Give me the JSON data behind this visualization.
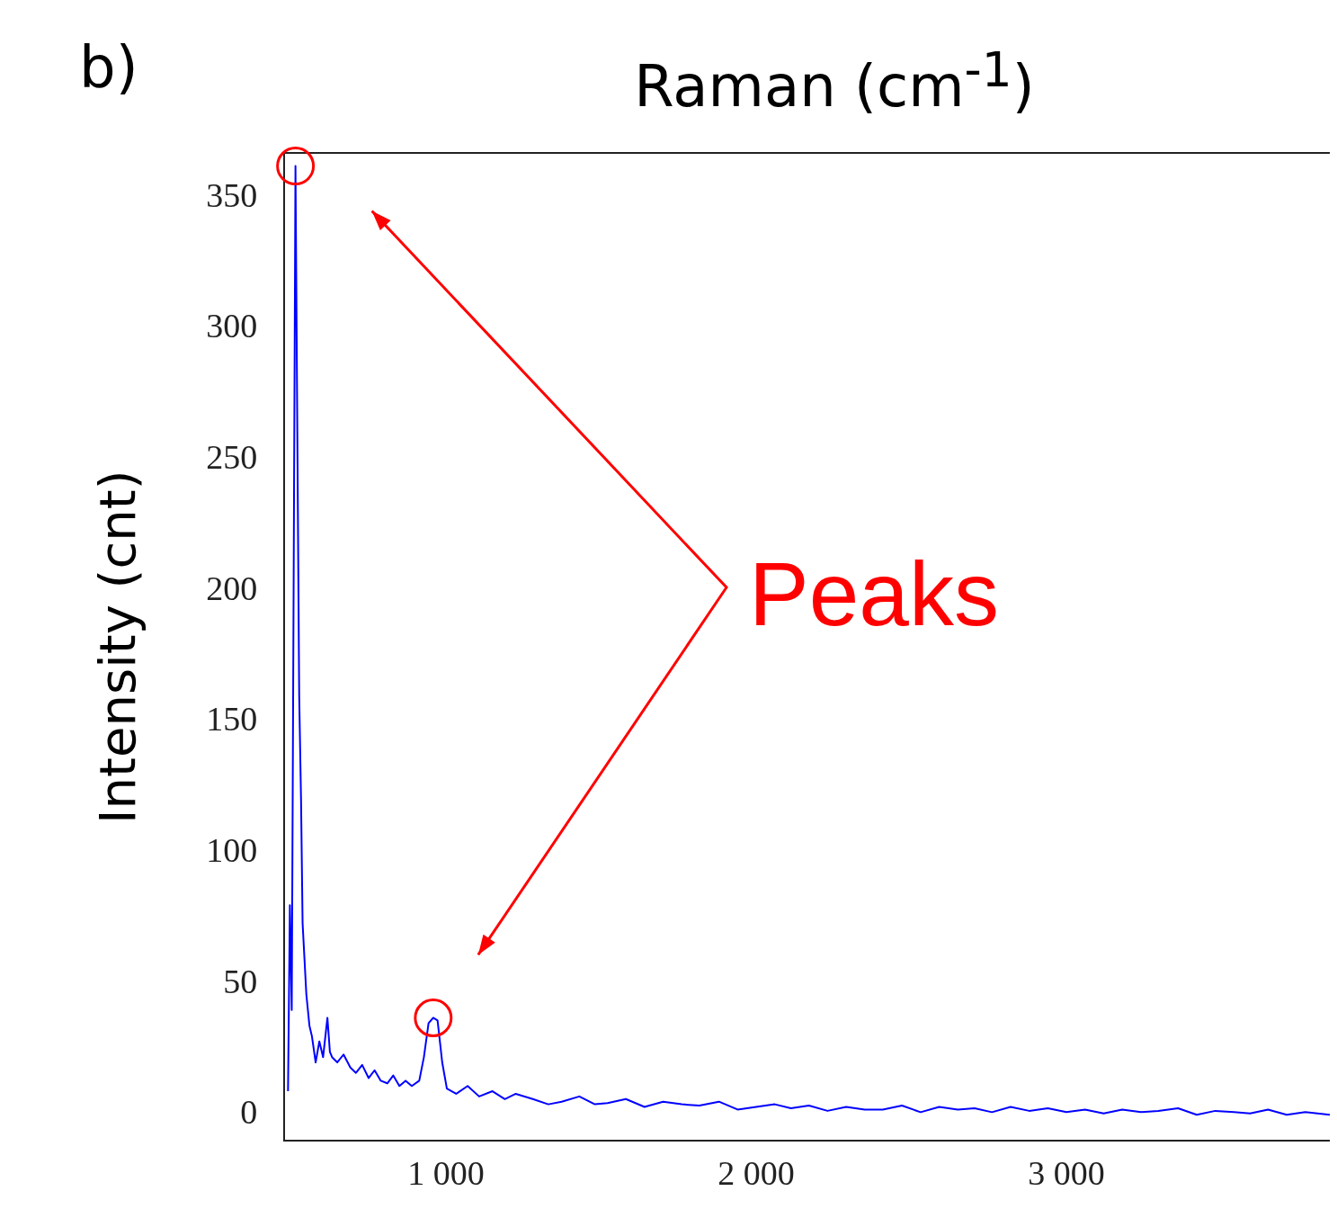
{
  "chart_data": {
    "type": "line",
    "xlabel": "Raman (cm$^{-1}$)",
    "ylabel": "Intensity (cnt)",
    "annotations": [
      "b)",
      "Peaks"
    ],
    "x": [
      491,
      497,
      503,
      509,
      515,
      521,
      527,
      533,
      538,
      550,
      560,
      568,
      580,
      592,
      604,
      618,
      626,
      633,
      650,
      670,
      692,
      710,
      730,
      751,
      770,
      790,
      811,
      830,
      850,
      870,
      890,
      914,
      929,
      944,
      959,
      973,
      988,
      1003,
      1033,
      1070,
      1107,
      1150,
      1190,
      1225,
      1280,
      1330,
      1373,
      1430,
      1480,
      1521,
      1580,
      1640,
      1700,
      1760,
      1817,
      1880,
      1940,
      2000,
      2060,
      2112,
      2170,
      2230,
      2290,
      2350,
      2408,
      2470,
      2530,
      2590,
      2650,
      2704,
      2760,
      2820,
      2880,
      2940,
      3000,
      3060,
      3120,
      3180,
      3240,
      3296,
      3360,
      3420,
      3480,
      3540,
      3592,
      3650,
      3710,
      3770,
      3849
    ],
    "series": [
      {
        "color": "#0000ff",
        "values": [
          9,
          80,
          40,
          200,
          362,
          260,
          160,
          120,
          73,
          46,
          34,
          30,
          20,
          28,
          22,
          37,
          24,
          22,
          20,
          23,
          18,
          16,
          19,
          14,
          17,
          13,
          12,
          15,
          11,
          13,
          11,
          13,
          22,
          35,
          37,
          36,
          20,
          10,
          8,
          11,
          7,
          9,
          6,
          8,
          6,
          4,
          5,
          7,
          4,
          4.5,
          6,
          3,
          5,
          4,
          3.5,
          5,
          2,
          3,
          4,
          2.5,
          3.5,
          1.5,
          3,
          2,
          2,
          3.5,
          1,
          3,
          2,
          2.5,
          1,
          3,
          1.5,
          2.5,
          1,
          2,
          0.5,
          2,
          1,
          1.5,
          2.5,
          0,
          1.5,
          1,
          0.5,
          2,
          0,
          1,
          0
        ]
      }
    ],
    "xlim": [
      479,
      3849
    ],
    "xticks": [
      {
        "value": 1000,
        "label": "1 000"
      },
      {
        "value": 2000,
        "label": "2 000"
      },
      {
        "value": 3000,
        "label": "3 000"
      }
    ],
    "ylim": [
      -10,
      367
    ],
    "yticks": [
      0,
      50,
      100,
      150,
      200,
      250,
      300,
      350
    ],
    "grid": false,
    "legend": false,
    "marker": "none",
    "line_style": "solid"
  }
}
